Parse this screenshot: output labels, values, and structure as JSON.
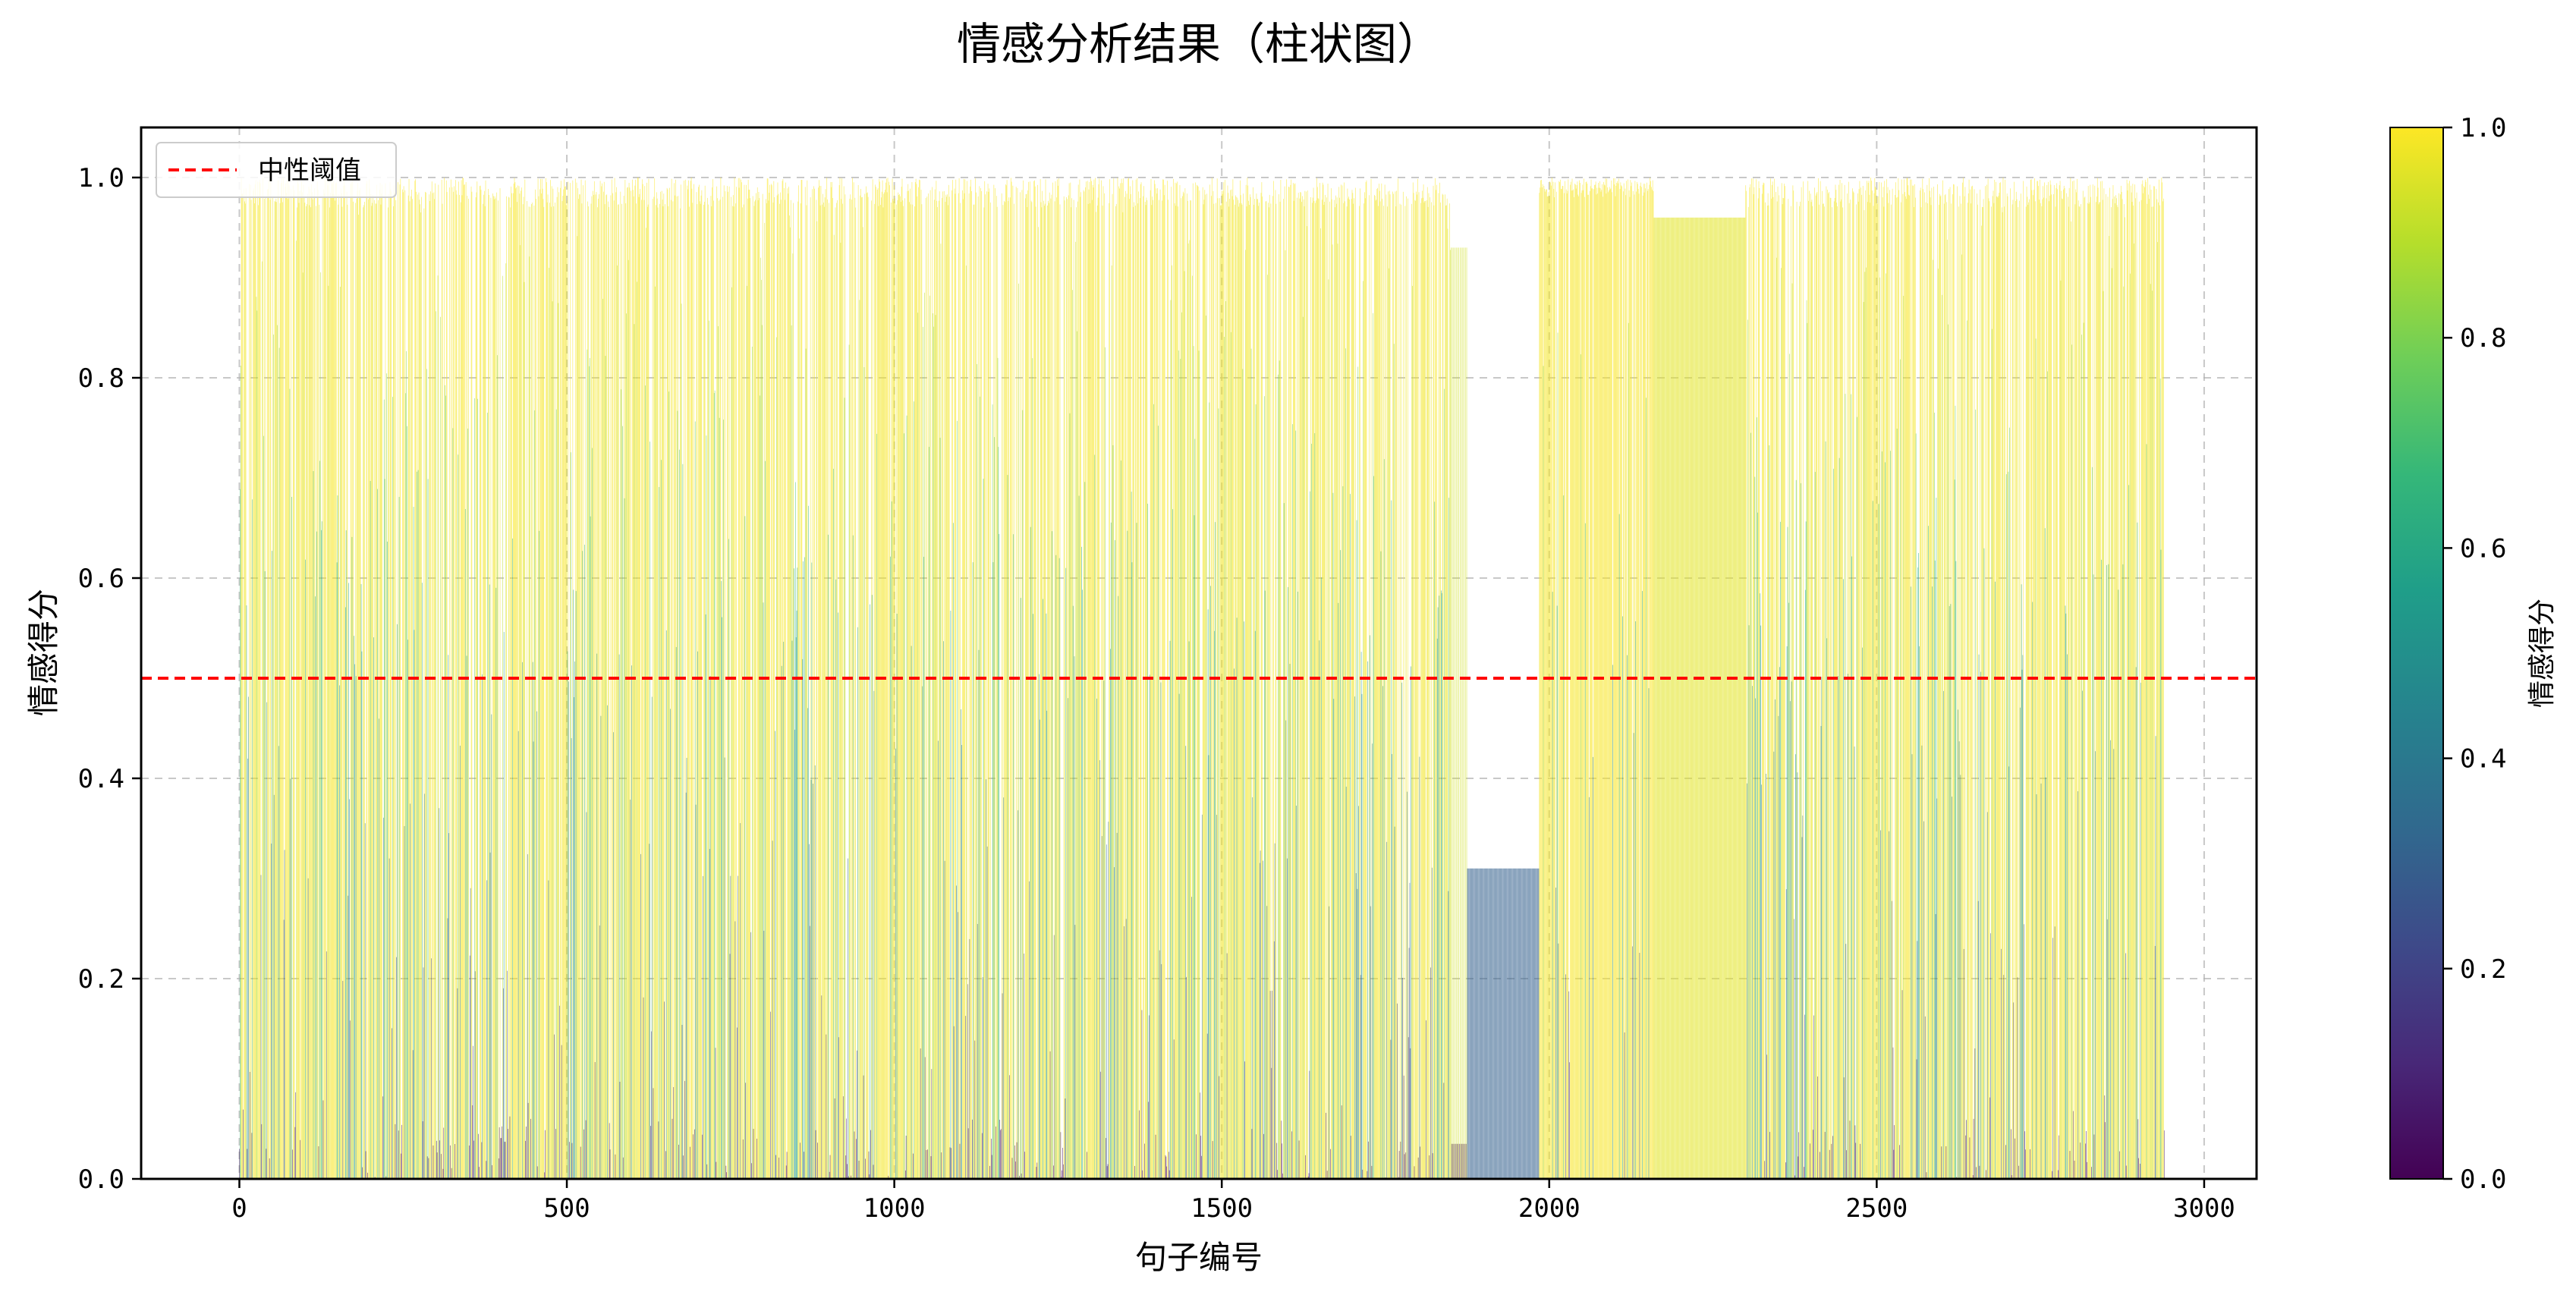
{
  "chart_data": {
    "type": "bar",
    "title": "情感分析结果（柱状图）",
    "xlabel": "句子编号",
    "ylabel": "情感得分",
    "xlim": [
      -150,
      3080
    ],
    "ylim": [
      0,
      1.05
    ],
    "x_ticks": [
      0,
      500,
      1000,
      1500,
      2000,
      2500,
      3000
    ],
    "y_ticks": [
      0.0,
      0.2,
      0.4,
      0.6,
      0.8,
      1.0
    ],
    "x_tick_labels": [
      "0",
      "500",
      "1000",
      "1500",
      "2000",
      "2500",
      "3000"
    ],
    "y_tick_labels": [
      "0.0",
      "0.2",
      "0.4",
      "0.6",
      "0.8",
      "1.0"
    ],
    "grid": true,
    "n_bars": 2940,
    "colormap": "viridis",
    "bar_alpha": 0.7,
    "segments": [
      {
        "x": [
          0,
          1850
        ],
        "value": 1.0,
        "note": "dense bars, mostly near 1.0 with scattered low values"
      },
      {
        "x": [
          1850,
          1875
        ],
        "value": 0.93
      },
      {
        "x": [
          1850,
          1875
        ],
        "value": 0.035
      },
      {
        "x": [
          1875,
          1985
        ],
        "value": 0.31
      },
      {
        "x": [
          1985,
          2160
        ],
        "value": 1.0
      },
      {
        "x": [
          2160,
          2300
        ],
        "value": 0.96
      },
      {
        "x": [
          2300,
          2940
        ],
        "value": 1.0
      }
    ],
    "threshold": {
      "value": 0.5,
      "label": "中性阈值",
      "color": "#ff0000",
      "style": "dashed"
    },
    "legend": {
      "position": "top-left",
      "entries": [
        "中性阈值"
      ]
    },
    "colorbar": {
      "label": "情感得分",
      "range": [
        0.0,
        1.0
      ],
      "ticks": [
        0.0,
        0.2,
        0.4,
        0.6,
        0.8,
        1.0
      ],
      "tick_labels": [
        "0.0",
        "0.2",
        "0.4",
        "0.6",
        "0.8",
        "1.0"
      ]
    }
  },
  "colors": {
    "threshold": "#ff0000",
    "grid": "#b0b0b0",
    "viridis": [
      "#440154",
      "#482878",
      "#3e4989",
      "#31688e",
      "#26828e",
      "#1f9e89",
      "#35b779",
      "#6ece58",
      "#b5de2b",
      "#fde725"
    ]
  }
}
